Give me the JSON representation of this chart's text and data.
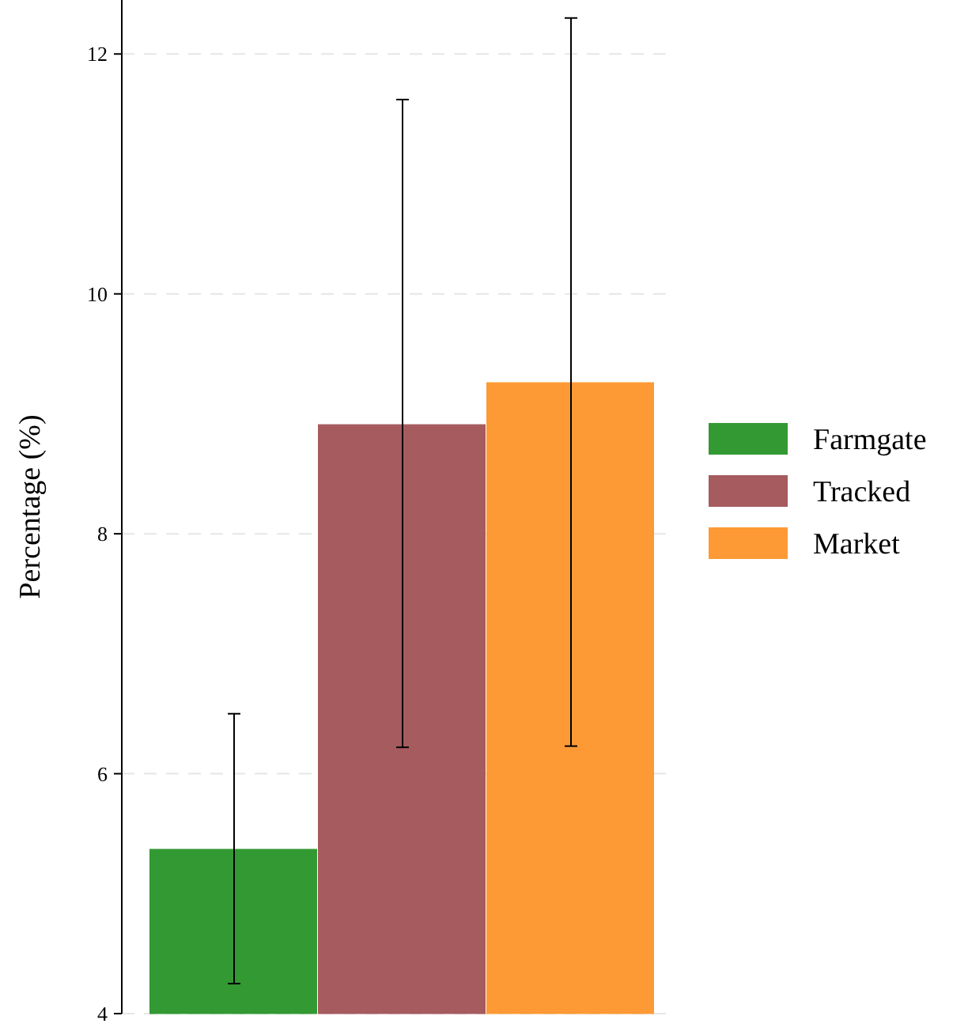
{
  "chart_data": {
    "type": "bar",
    "ylabel": "Percentage (%)",
    "categories": [
      null
    ],
    "series": [
      {
        "name": "Farmgate",
        "color": "#339933",
        "values": [
          5.37
        ],
        "errors": [
          [
            4.25,
            6.5
          ]
        ]
      },
      {
        "name": "Tracked",
        "color": "#a65b5e",
        "values": [
          8.91
        ],
        "errors": [
          [
            6.22,
            11.62
          ]
        ]
      },
      {
        "name": "Market",
        "color": "#fd9a36",
        "values": [
          9.26
        ],
        "errors": [
          [
            6.23,
            12.3
          ]
        ]
      }
    ],
    "ylim": [
      4,
      12.45
    ],
    "yticks": [
      4,
      6,
      8,
      10,
      12
    ],
    "grid": "y",
    "legend": "right"
  }
}
